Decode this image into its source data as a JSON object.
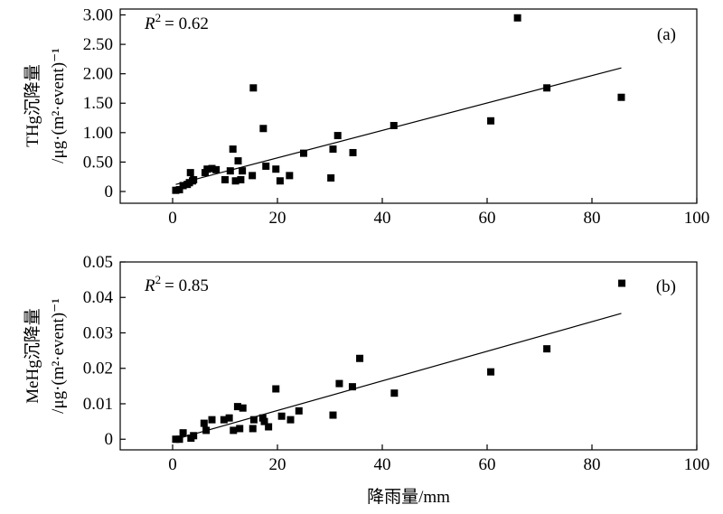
{
  "chart_data": [
    {
      "type": "scatter",
      "panel_label": "(a)",
      "r2_label": "R",
      "r2_value": "= 0.62",
      "ylabel_line1": "THg沉降量",
      "ylabel_line2": "/μg·(m²·event)⁻¹",
      "xlabel": "",
      "xlim": [
        -10,
        100
      ],
      "ylim": [
        -0.2,
        3.1
      ],
      "xticks": [
        "0",
        "20",
        "40",
        "60",
        "80",
        "100"
      ],
      "yticks": [
        "0",
        "0.50",
        "1.00",
        "1.50",
        "2.00",
        "2.50",
        "3.00"
      ],
      "points": [
        [
          0.6,
          0.02
        ],
        [
          1.3,
          0.03
        ],
        [
          2.0,
          0.1
        ],
        [
          2.8,
          0.12
        ],
        [
          3.2,
          0.15
        ],
        [
          3.4,
          0.32
        ],
        [
          3.8,
          0.18
        ],
        [
          4.0,
          0.2
        ],
        [
          6.2,
          0.32
        ],
        [
          6.6,
          0.38
        ],
        [
          7.5,
          0.39
        ],
        [
          8.3,
          0.37
        ],
        [
          10.0,
          0.2
        ],
        [
          11.0,
          0.35
        ],
        [
          11.5,
          0.72
        ],
        [
          12.0,
          0.18
        ],
        [
          12.5,
          0.52
        ],
        [
          13.0,
          0.2
        ],
        [
          13.3,
          0.35
        ],
        [
          15.2,
          0.27
        ],
        [
          15.4,
          1.76
        ],
        [
          17.3,
          1.07
        ],
        [
          17.8,
          0.43
        ],
        [
          19.7,
          0.38
        ],
        [
          20.5,
          0.18
        ],
        [
          22.3,
          0.27
        ],
        [
          25.0,
          0.65
        ],
        [
          30.2,
          0.23
        ],
        [
          30.6,
          0.72
        ],
        [
          31.5,
          0.95
        ],
        [
          34.4,
          0.66
        ],
        [
          42.2,
          1.12
        ],
        [
          60.7,
          1.2
        ],
        [
          65.8,
          2.95
        ],
        [
          71.4,
          1.76
        ],
        [
          85.6,
          1.6
        ]
      ],
      "fit": [
        [
          0.6,
          0.12
        ],
        [
          85.6,
          2.1
        ]
      ]
    },
    {
      "type": "scatter",
      "panel_label": "(b)",
      "r2_label": "R",
      "r2_value": "= 0.85",
      "ylabel_line1": "MeHg沉降量",
      "ylabel_line2": "/μg·(m²·event)⁻¹",
      "xlabel": "降雨量/mm",
      "xlim": [
        -10,
        100
      ],
      "ylim": [
        -0.003,
        0.05
      ],
      "xticks": [
        "0",
        "20",
        "40",
        "60",
        "80",
        "100"
      ],
      "yticks": [
        "0",
        "0.01",
        "0.02",
        "0.03",
        "0.04",
        "0.05"
      ],
      "points": [
        [
          0.6,
          0.0
        ],
        [
          1.3,
          0.0
        ],
        [
          2.0,
          0.0018
        ],
        [
          3.5,
          0.0003
        ],
        [
          4.0,
          0.001
        ],
        [
          6.0,
          0.0045
        ],
        [
          6.4,
          0.0025
        ],
        [
          7.5,
          0.0055
        ],
        [
          9.8,
          0.0055
        ],
        [
          10.8,
          0.006
        ],
        [
          11.6,
          0.0025
        ],
        [
          12.4,
          0.0092
        ],
        [
          12.8,
          0.003
        ],
        [
          13.4,
          0.0088
        ],
        [
          15.3,
          0.003
        ],
        [
          15.5,
          0.0055
        ],
        [
          17.2,
          0.006
        ],
        [
          17.5,
          0.005
        ],
        [
          18.3,
          0.0035
        ],
        [
          19.7,
          0.0142
        ],
        [
          20.8,
          0.0065
        ],
        [
          22.5,
          0.0055
        ],
        [
          24.1,
          0.008
        ],
        [
          30.6,
          0.0068
        ],
        [
          31.8,
          0.0157
        ],
        [
          34.3,
          0.0148
        ],
        [
          35.7,
          0.0228
        ],
        [
          42.3,
          0.013
        ],
        [
          60.7,
          0.019
        ],
        [
          71.4,
          0.0255
        ],
        [
          85.7,
          0.044
        ]
      ],
      "fit": [
        [
          0.6,
          0.0
        ],
        [
          85.6,
          0.0355
        ]
      ]
    }
  ]
}
